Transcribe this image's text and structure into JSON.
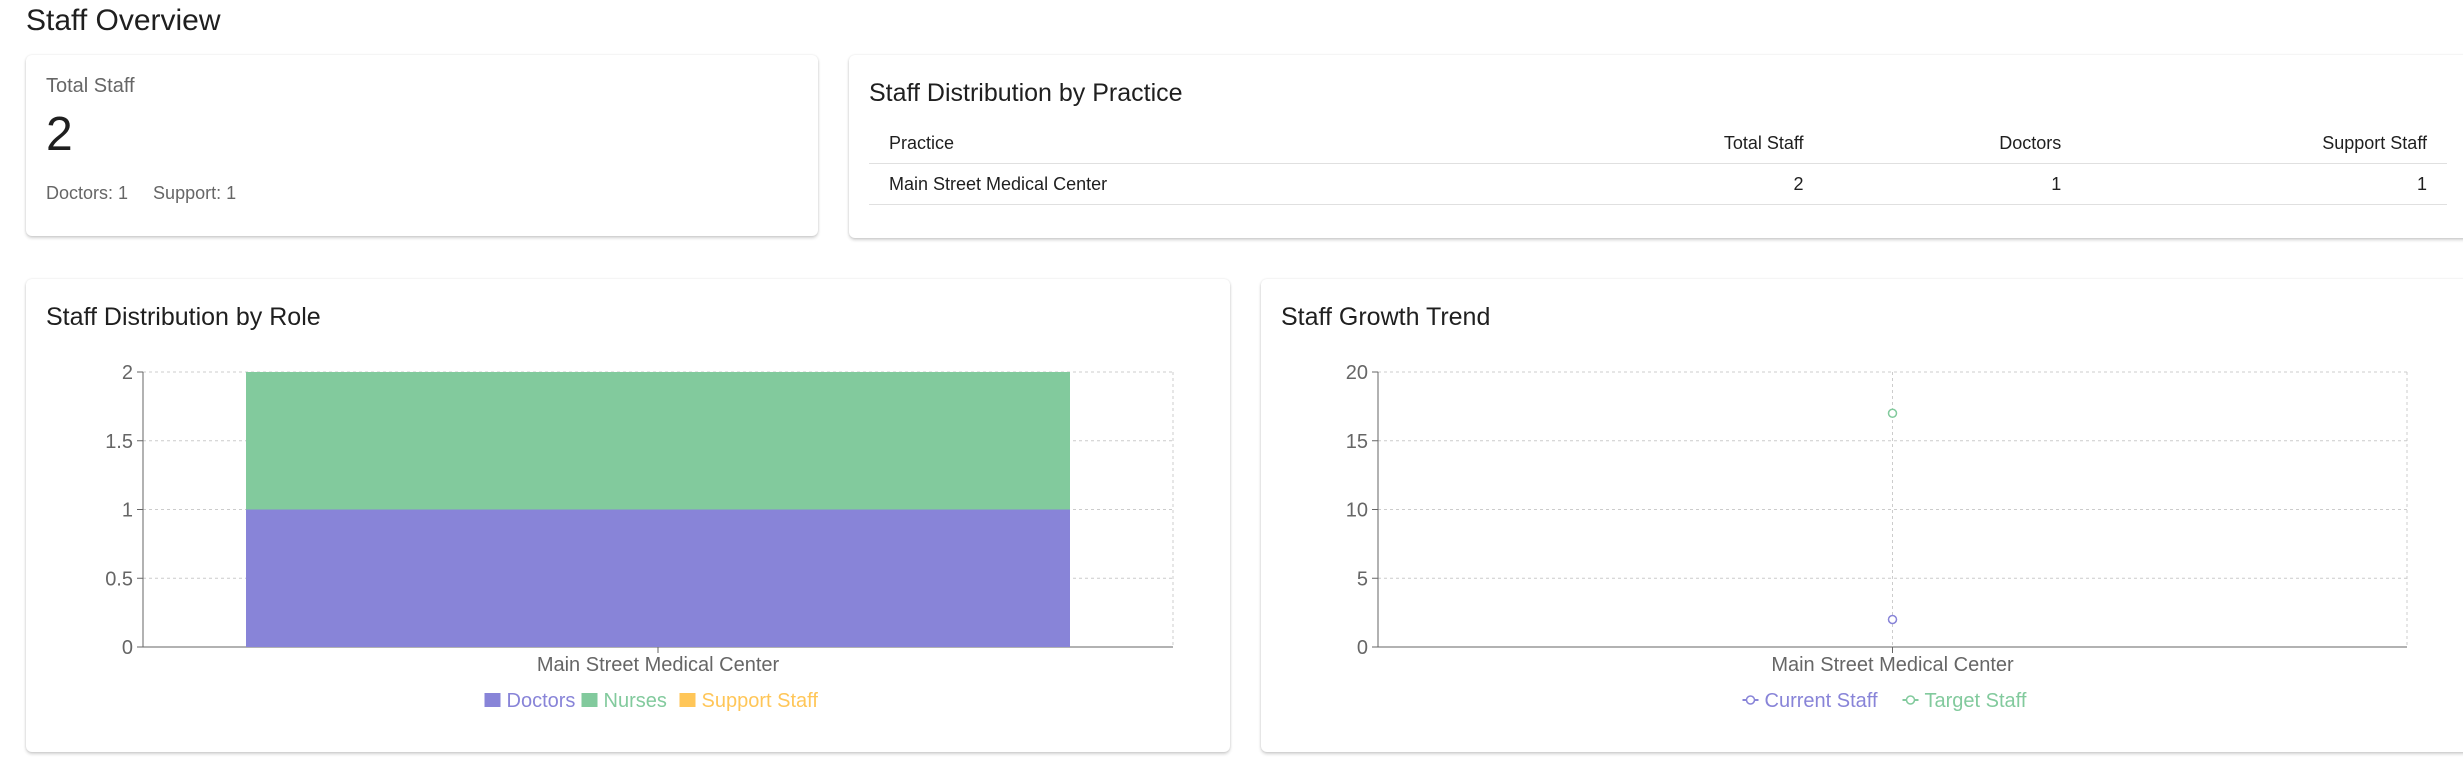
{
  "page": {
    "title": "Staff Overview"
  },
  "total_staff": {
    "label": "Total Staff",
    "value": "2",
    "doctors": "Doctors: 1",
    "support": "Support: 1"
  },
  "practice_table": {
    "title": "Staff Distribution by Practice",
    "headers": [
      "Practice",
      "Total Staff",
      "Doctors",
      "Support Staff"
    ],
    "rows": [
      [
        "Main Street Medical Center",
        "2",
        "1",
        "1"
      ]
    ]
  },
  "colors": {
    "doctors": "#8884d8",
    "nurses": "#82ca9d",
    "support": "#ffc658",
    "current": "#8884d8",
    "target": "#82ca9d",
    "grid": "#cccccc",
    "axis": "#666666"
  },
  "chart_data": [
    {
      "type": "bar",
      "title": "Staff Distribution by Role",
      "stacked": true,
      "categories": [
        "Main Street Medical Center"
      ],
      "series": [
        {
          "name": "Doctors",
          "values": [
            1
          ]
        },
        {
          "name": "Nurses",
          "values": [
            1
          ]
        },
        {
          "name": "Support Staff",
          "values": [
            0
          ]
        }
      ],
      "yticks": [
        "0",
        "0.5",
        "1",
        "1.5",
        "2"
      ],
      "ylim": [
        0,
        2
      ],
      "grid": true,
      "legend": "bottom"
    },
    {
      "type": "line",
      "title": "Staff Growth Trend",
      "categories": [
        "Main Street Medical Center"
      ],
      "series": [
        {
          "name": "Current Staff",
          "values": [
            2
          ]
        },
        {
          "name": "Target Staff",
          "values": [
            17
          ]
        }
      ],
      "yticks": [
        "0",
        "5",
        "10",
        "15",
        "20"
      ],
      "ylim": [
        0,
        20
      ],
      "grid": true,
      "legend": "bottom"
    }
  ]
}
